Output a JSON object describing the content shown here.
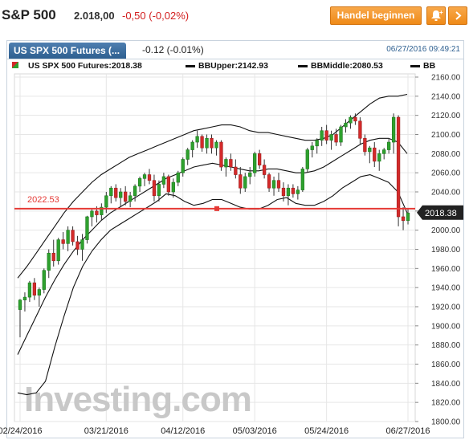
{
  "header": {
    "ticker": "S&P 500",
    "price": "2.018,00",
    "change": "-0,50 (-0,02%)",
    "trade_button": "Handel beginnen",
    "alert_icon": "alert-add-icon",
    "menu_icon": "chevron-icon"
  },
  "panel": {
    "tab_label": "US SPX 500 Futures (...",
    "tab_change": "-0.12 (-0.01%)",
    "timestamp": "06/27/2016 09:49:21"
  },
  "legend": {
    "series_main": "US SPX 500 Futures:2018.38",
    "bb_upper": "BBUpper:2142.93",
    "bb_middle": "BBMiddle:2080.53",
    "bb_lower": "BB"
  },
  "chart_data": {
    "type": "candlestick",
    "ylim": [
      1800,
      2160
    ],
    "yticks": [
      1800,
      1820,
      1840,
      1860,
      1880,
      1900,
      1920,
      1940,
      1960,
      1980,
      2000,
      2020,
      2040,
      2060,
      2080,
      2100,
      2120,
      2140,
      2160
    ],
    "xticks": [
      "02/24/2016",
      "03/21/2016",
      "04/12/2016",
      "05/03/2016",
      "05/24/2016",
      "06/27/2016"
    ],
    "reference_line": {
      "value": 2022.53,
      "label": "2022.53",
      "color": "#e53935"
    },
    "last_price": {
      "value": 2018.38,
      "label": "2018.38"
    },
    "watermark": "Investing.com",
    "colors": {
      "up": "#2ea12e",
      "down": "#d42a2a",
      "band": "#111111",
      "grid": "#e6e6e6"
    },
    "candles": [
      [
        1917,
        1928,
        1888,
        1927
      ],
      [
        1927,
        1935,
        1915,
        1930
      ],
      [
        1930,
        1947,
        1925,
        1945
      ],
      [
        1945,
        1950,
        1927,
        1932
      ],
      [
        1932,
        1940,
        1920,
        1938
      ],
      [
        1938,
        1960,
        1934,
        1958
      ],
      [
        1958,
        1980,
        1950,
        1976
      ],
      [
        1976,
        1990,
        1962,
        1968
      ],
      [
        1968,
        1992,
        1964,
        1990
      ],
      [
        1990,
        1998,
        1980,
        1986
      ],
      [
        1986,
        2004,
        1978,
        2000
      ],
      [
        2000,
        2004,
        1984,
        1988
      ],
      [
        1988,
        1994,
        1974,
        1980
      ],
      [
        1980,
        1996,
        1968,
        1990
      ],
      [
        1990,
        2015,
        1986,
        2014
      ],
      [
        2014,
        2022,
        2004,
        2020
      ],
      [
        2020,
        2025,
        2008,
        2016
      ],
      [
        2016,
        2028,
        2010,
        2024
      ],
      [
        2024,
        2040,
        2018,
        2036
      ],
      [
        2036,
        2046,
        2028,
        2044
      ],
      [
        2044,
        2048,
        2030,
        2034
      ],
      [
        2034,
        2044,
        2024,
        2040
      ],
      [
        2040,
        2046,
        2026,
        2030
      ],
      [
        2030,
        2040,
        2024,
        2036
      ],
      [
        2036,
        2048,
        2030,
        2046
      ],
      [
        2046,
        2056,
        2040,
        2054
      ],
      [
        2054,
        2060,
        2046,
        2058
      ],
      [
        2058,
        2064,
        2048,
        2052
      ],
      [
        2052,
        2058,
        2030,
        2036
      ],
      [
        2036,
        2052,
        2030,
        2048
      ],
      [
        2048,
        2060,
        2044,
        2056
      ],
      [
        2056,
        2058,
        2036,
        2040
      ],
      [
        2040,
        2054,
        2034,
        2050
      ],
      [
        2050,
        2062,
        2046,
        2060
      ],
      [
        2060,
        2076,
        2056,
        2074
      ],
      [
        2074,
        2086,
        2068,
        2084
      ],
      [
        2084,
        2094,
        2076,
        2092
      ],
      [
        2092,
        2104,
        2086,
        2098
      ],
      [
        2098,
        2100,
        2082,
        2086
      ],
      [
        2086,
        2100,
        2080,
        2096
      ],
      [
        2096,
        2100,
        2080,
        2086
      ],
      [
        2086,
        2094,
        2078,
        2092
      ],
      [
        2092,
        2094,
        2062,
        2066
      ],
      [
        2066,
        2076,
        2056,
        2074
      ],
      [
        2074,
        2080,
        2062,
        2066
      ],
      [
        2066,
        2074,
        2054,
        2058
      ],
      [
        2058,
        2066,
        2038,
        2044
      ],
      [
        2044,
        2060,
        2040,
        2056
      ],
      [
        2056,
        2066,
        2048,
        2060
      ],
      [
        2060,
        2082,
        2056,
        2080
      ],
      [
        2080,
        2084,
        2064,
        2068
      ],
      [
        2068,
        2074,
        2054,
        2058
      ],
      [
        2058,
        2060,
        2040,
        2044
      ],
      [
        2044,
        2056,
        2036,
        2052
      ],
      [
        2052,
        2060,
        2040,
        2044
      ],
      [
        2044,
        2050,
        2030,
        2036
      ],
      [
        2036,
        2048,
        2026,
        2044
      ],
      [
        2044,
        2048,
        2034,
        2038
      ],
      [
        2038,
        2046,
        2032,
        2042
      ],
      [
        2042,
        2066,
        2040,
        2064
      ],
      [
        2064,
        2086,
        2060,
        2084
      ],
      [
        2084,
        2092,
        2076,
        2088
      ],
      [
        2088,
        2096,
        2080,
        2094
      ],
      [
        2094,
        2108,
        2088,
        2104
      ],
      [
        2104,
        2110,
        2090,
        2094
      ],
      [
        2094,
        2104,
        2084,
        2100
      ],
      [
        2100,
        2106,
        2088,
        2092
      ],
      [
        2092,
        2110,
        2088,
        2108
      ],
      [
        2108,
        2116,
        2102,
        2112
      ],
      [
        2112,
        2120,
        2106,
        2118
      ],
      [
        2118,
        2122,
        2110,
        2114
      ],
      [
        2114,
        2118,
        2090,
        2096
      ],
      [
        2096,
        2100,
        2078,
        2082
      ],
      [
        2082,
        2088,
        2070,
        2086
      ],
      [
        2086,
        2092,
        2066,
        2072
      ],
      [
        2072,
        2084,
        2062,
        2080
      ],
      [
        2080,
        2086,
        2074,
        2084
      ],
      [
        2084,
        2096,
        2080,
        2092
      ],
      [
        2092,
        2122,
        2080,
        2118
      ],
      [
        2118,
        2120,
        2004,
        2014
      ],
      [
        2014,
        2024,
        2000,
        2010
      ],
      [
        2010,
        2022,
        2006,
        2018
      ]
    ],
    "bb_upper": [
      1950,
      1962,
      1976,
      1990,
      2004,
      2018,
      2030,
      2040,
      2050,
      2058,
      2064,
      2070,
      2076,
      2080,
      2084,
      2088,
      2092,
      2096,
      2100,
      2104,
      2106,
      2108,
      2110,
      2110,
      2108,
      2104,
      2102,
      2102,
      2100,
      2098,
      2096,
      2094,
      2094,
      2096,
      2100,
      2108,
      2116,
      2124,
      2132,
      2138,
      2140,
      2140,
      2142
    ],
    "bb_middle": [
      1870,
      1890,
      1910,
      1930,
      1948,
      1964,
      1978,
      1990,
      2000,
      2010,
      2018,
      2024,
      2030,
      2036,
      2042,
      2048,
      2054,
      2058,
      2062,
      2066,
      2068,
      2070,
      2068,
      2066,
      2064,
      2062,
      2062,
      2064,
      2064,
      2062,
      2060,
      2060,
      2062,
      2066,
      2072,
      2078,
      2084,
      2090,
      2094,
      2096,
      2096,
      2092,
      2080
    ],
    "bb_lower": [
      1830,
      1828,
      1830,
      1842,
      1878,
      1910,
      1940,
      1962,
      1978,
      1990,
      2000,
      2006,
      2012,
      2018,
      2024,
      2030,
      2038,
      2036,
      2030,
      2026,
      2028,
      2032,
      2032,
      2028,
      2024,
      2022,
      2022,
      2026,
      2032,
      2034,
      2028,
      2026,
      2026,
      2030,
      2036,
      2044,
      2050,
      2056,
      2058,
      2054,
      2050,
      2040,
      2018
    ]
  }
}
